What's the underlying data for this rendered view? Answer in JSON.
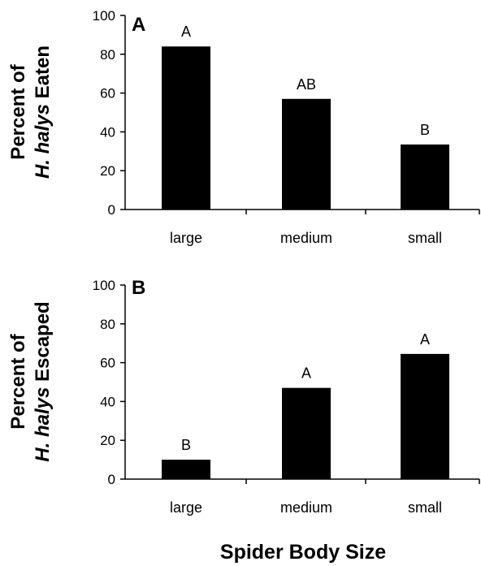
{
  "chart_data": [
    {
      "type": "bar",
      "panel": "A",
      "categories": [
        "large",
        "medium",
        "small"
      ],
      "values": [
        84,
        57,
        33.5
      ],
      "significance": [
        "A",
        "AB",
        "B"
      ],
      "ylabel_line1": "Percent of",
      "ylabel_line2_italic": "H. halys",
      "ylabel_line2_rest": " Eaten",
      "ylim": [
        0,
        100
      ],
      "yticks": [
        "0",
        "20",
        "40",
        "60",
        "80",
        "100"
      ],
      "bar_color": "#000000",
      "grid": false,
      "legend": "none"
    },
    {
      "type": "bar",
      "panel": "B",
      "categories": [
        "large",
        "medium",
        "small"
      ],
      "values": [
        10,
        47,
        64.5
      ],
      "significance": [
        "B",
        "A",
        "A"
      ],
      "ylabel_line1": "Percent of",
      "ylabel_line2_italic": "H. halys",
      "ylabel_line2_rest": " Escaped",
      "ylim": [
        0,
        100
      ],
      "yticks": [
        "0",
        "20",
        "40",
        "60",
        "80",
        "100"
      ],
      "bar_color": "#000000",
      "grid": false,
      "legend": "none"
    }
  ],
  "xlabel": "Spider Body Size"
}
